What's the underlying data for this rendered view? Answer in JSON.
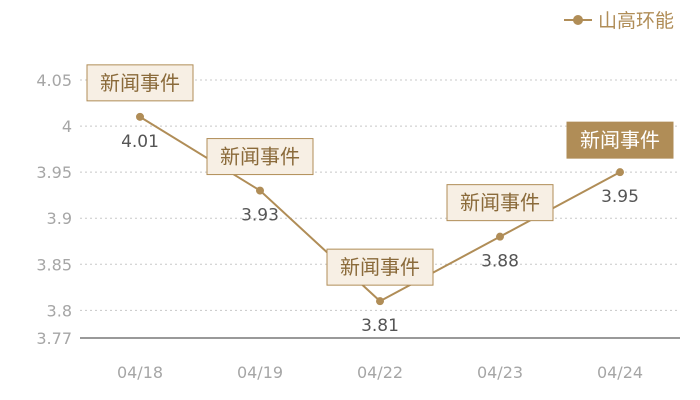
{
  "chart_data": {
    "type": "line",
    "categories": [
      "04/18",
      "04/19",
      "04/22",
      "04/23",
      "04/24"
    ],
    "series": [
      {
        "name": "山高环能",
        "values": [
          4.01,
          3.93,
          3.81,
          3.88,
          3.95
        ]
      }
    ],
    "y_ticks": [
      "4.05",
      "4",
      "3.95",
      "3.9",
      "3.85",
      "3.8",
      "3.77"
    ],
    "ylim": [
      3.77,
      4.05
    ],
    "grid": true,
    "legend": "top-right",
    "colors": {
      "line": "#b08d57",
      "event_fill": "#f7efe4",
      "event_fill_active": "#b08d57",
      "tick_text": "#a6a6a6",
      "value_text": "#555555"
    },
    "event_label": "新闻事件",
    "events": [
      {
        "category": "04/18",
        "active": false
      },
      {
        "category": "04/19",
        "active": false
      },
      {
        "category": "04/22",
        "active": false
      },
      {
        "category": "04/23",
        "active": false
      },
      {
        "category": "04/24",
        "active": true
      }
    ]
  }
}
